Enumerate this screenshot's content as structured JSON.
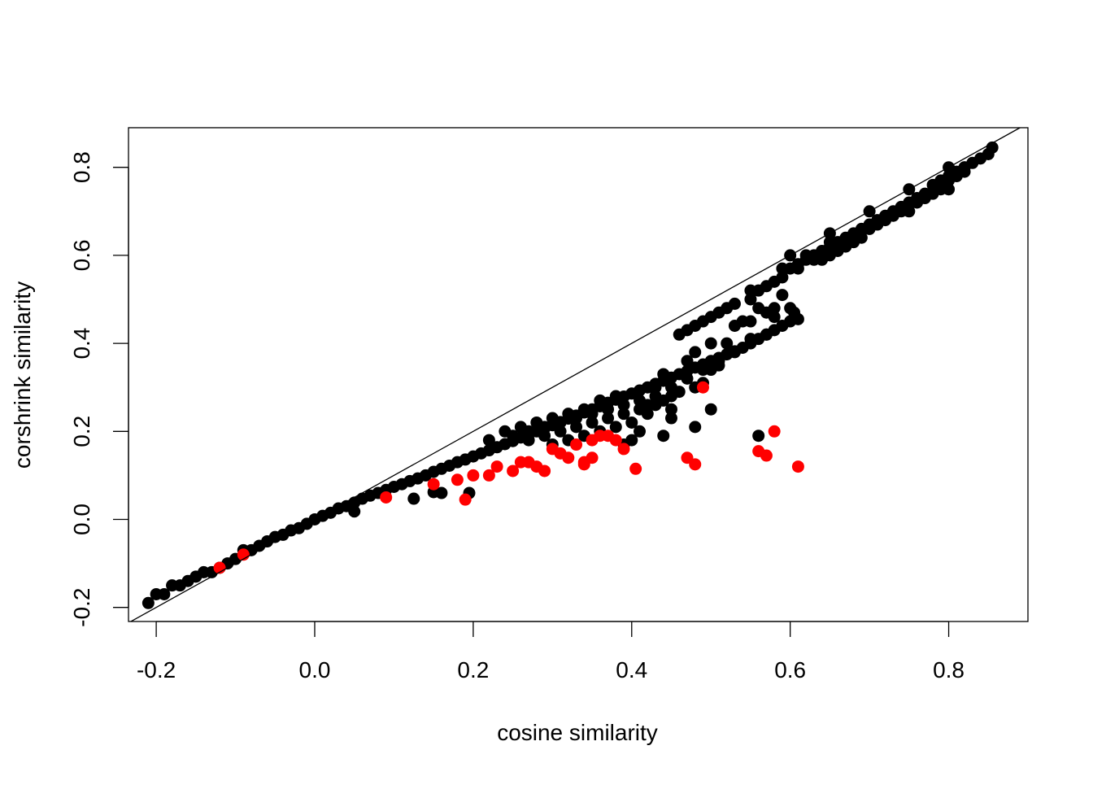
{
  "chart_data": {
    "type": "scatter",
    "title": "",
    "xlabel": "cosine similarity",
    "ylabel": "corshrink similarity",
    "xlim": [
      -0.235,
      0.9
    ],
    "ylim": [
      -0.232,
      0.89
    ],
    "x_ticks": [
      -0.2,
      0.0,
      0.2,
      0.4,
      0.6,
      0.8
    ],
    "x_tick_labels": [
      "-0.2",
      "0.0",
      "0.2",
      "0.4",
      "0.6",
      "0.8"
    ],
    "y_ticks": [
      -0.2,
      0.0,
      0.2,
      0.4,
      0.6,
      0.8
    ],
    "y_tick_labels": [
      "-0.2",
      "0.0",
      "0.2",
      "0.4",
      "0.6",
      "0.8"
    ],
    "grid": false,
    "legend": "none",
    "reference_line": {
      "intercept": 0,
      "slope": 1,
      "color": "#000000"
    },
    "series": [
      {
        "color": "#000000",
        "points": [
          [
            -0.21,
            -0.19
          ],
          [
            -0.2,
            -0.17
          ],
          [
            -0.19,
            -0.17
          ],
          [
            -0.18,
            -0.15
          ],
          [
            -0.17,
            -0.15
          ],
          [
            -0.16,
            -0.14
          ],
          [
            -0.15,
            -0.13
          ],
          [
            -0.14,
            -0.12
          ],
          [
            -0.13,
            -0.12
          ],
          [
            -0.12,
            -0.11
          ],
          [
            -0.11,
            -0.1
          ],
          [
            -0.1,
            -0.09
          ],
          [
            -0.09,
            -0.07
          ],
          [
            -0.08,
            -0.07
          ],
          [
            -0.07,
            -0.06
          ],
          [
            -0.06,
            -0.05
          ],
          [
            -0.05,
            -0.04
          ],
          [
            -0.04,
            -0.035
          ],
          [
            -0.03,
            -0.025
          ],
          [
            -0.02,
            -0.02
          ],
          [
            -0.01,
            -0.01
          ],
          [
            0.0,
            0.0
          ],
          [
            0.01,
            0.008
          ],
          [
            0.02,
            0.015
          ],
          [
            0.03,
            0.025
          ],
          [
            0.04,
            0.03
          ],
          [
            0.05,
            0.038
          ],
          [
            0.05,
            0.018
          ],
          [
            0.06,
            0.047
          ],
          [
            0.07,
            0.054
          ],
          [
            0.08,
            0.06
          ],
          [
            0.09,
            0.067
          ],
          [
            0.1,
            0.074
          ],
          [
            0.11,
            0.08
          ],
          [
            0.12,
            0.087
          ],
          [
            0.125,
            0.047
          ],
          [
            0.13,
            0.093
          ],
          [
            0.14,
            0.1
          ],
          [
            0.15,
            0.108
          ],
          [
            0.15,
            0.062
          ],
          [
            0.16,
            0.06
          ],
          [
            0.16,
            0.115
          ],
          [
            0.17,
            0.122
          ],
          [
            0.18,
            0.13
          ],
          [
            0.19,
            0.136
          ],
          [
            0.195,
            0.06
          ],
          [
            0.2,
            0.143
          ],
          [
            0.21,
            0.15
          ],
          [
            0.22,
            0.157
          ],
          [
            0.23,
            0.164
          ],
          [
            0.24,
            0.171
          ],
          [
            0.25,
            0.178
          ],
          [
            0.26,
            0.186
          ],
          [
            0.27,
            0.193
          ],
          [
            0.28,
            0.2
          ],
          [
            0.29,
            0.207
          ],
          [
            0.3,
            0.214
          ],
          [
            0.31,
            0.221
          ],
          [
            0.32,
            0.229
          ],
          [
            0.33,
            0.236
          ],
          [
            0.34,
            0.243
          ],
          [
            0.35,
            0.25
          ],
          [
            0.36,
            0.257
          ],
          [
            0.37,
            0.265
          ],
          [
            0.38,
            0.272
          ],
          [
            0.39,
            0.279
          ],
          [
            0.4,
            0.286
          ],
          [
            0.41,
            0.293
          ],
          [
            0.42,
            0.3
          ],
          [
            0.43,
            0.308
          ],
          [
            0.44,
            0.315
          ],
          [
            0.45,
            0.322
          ],
          [
            0.46,
            0.33
          ],
          [
            0.47,
            0.337
          ],
          [
            0.48,
            0.345
          ],
          [
            0.49,
            0.352
          ],
          [
            0.5,
            0.36
          ],
          [
            0.51,
            0.367
          ],
          [
            0.52,
            0.375
          ],
          [
            0.53,
            0.382
          ],
          [
            0.54,
            0.39
          ],
          [
            0.24,
            0.2
          ],
          [
            0.26,
            0.21
          ],
          [
            0.28,
            0.22
          ],
          [
            0.3,
            0.23
          ],
          [
            0.32,
            0.24
          ],
          [
            0.34,
            0.25
          ],
          [
            0.36,
            0.27
          ],
          [
            0.38,
            0.28
          ],
          [
            0.22,
            0.18
          ],
          [
            0.25,
            0.19
          ],
          [
            0.27,
            0.2
          ],
          [
            0.29,
            0.21
          ],
          [
            0.31,
            0.22
          ],
          [
            0.33,
            0.23
          ],
          [
            0.35,
            0.24
          ],
          [
            0.37,
            0.25
          ],
          [
            0.39,
            0.26
          ],
          [
            0.41,
            0.27
          ],
          [
            0.43,
            0.28
          ],
          [
            0.45,
            0.3
          ],
          [
            0.47,
            0.32
          ],
          [
            0.49,
            0.34
          ],
          [
            0.51,
            0.36
          ],
          [
            0.53,
            0.38
          ],
          [
            0.27,
            0.18
          ],
          [
            0.29,
            0.19
          ],
          [
            0.31,
            0.2
          ],
          [
            0.33,
            0.21
          ],
          [
            0.35,
            0.22
          ],
          [
            0.37,
            0.23
          ],
          [
            0.39,
            0.24
          ],
          [
            0.41,
            0.25
          ],
          [
            0.43,
            0.26
          ],
          [
            0.45,
            0.28
          ],
          [
            0.3,
            0.17
          ],
          [
            0.32,
            0.18
          ],
          [
            0.34,
            0.19
          ],
          [
            0.36,
            0.2
          ],
          [
            0.38,
            0.21
          ],
          [
            0.4,
            0.22
          ],
          [
            0.42,
            0.24
          ],
          [
            0.44,
            0.27
          ],
          [
            0.39,
            0.17
          ],
          [
            0.4,
            0.18
          ],
          [
            0.41,
            0.2
          ],
          [
            0.42,
            0.26
          ],
          [
            0.43,
            0.3
          ],
          [
            0.44,
            0.33
          ],
          [
            0.45,
            0.25
          ],
          [
            0.46,
            0.29
          ],
          [
            0.47,
            0.36
          ],
          [
            0.48,
            0.38
          ],
          [
            0.48,
            0.21
          ],
          [
            0.44,
            0.19
          ],
          [
            0.45,
            0.23
          ],
          [
            0.48,
            0.3
          ],
          [
            0.49,
            0.31
          ],
          [
            0.5,
            0.25
          ],
          [
            0.5,
            0.34
          ],
          [
            0.5,
            0.4
          ],
          [
            0.51,
            0.35
          ],
          [
            0.52,
            0.4
          ],
          [
            0.53,
            0.44
          ],
          [
            0.54,
            0.45
          ],
          [
            0.55,
            0.45
          ],
          [
            0.56,
            0.48
          ],
          [
            0.56,
            0.19
          ],
          [
            0.57,
            0.47
          ],
          [
            0.58,
            0.48
          ],
          [
            0.59,
            0.51
          ],
          [
            0.6,
            0.48
          ],
          [
            0.605,
            0.47
          ],
          [
            0.61,
            0.455
          ],
          [
            0.55,
            0.41
          ],
          [
            0.58,
            0.46
          ],
          [
            0.57,
            0.42
          ],
          [
            0.55,
            0.4
          ],
          [
            0.56,
            0.41
          ],
          [
            0.57,
            0.42
          ],
          [
            0.58,
            0.43
          ],
          [
            0.59,
            0.44
          ],
          [
            0.6,
            0.45
          ],
          [
            0.55,
            0.52
          ],
          [
            0.56,
            0.52
          ],
          [
            0.57,
            0.53
          ],
          [
            0.58,
            0.54
          ],
          [
            0.59,
            0.55
          ],
          [
            0.6,
            0.57
          ],
          [
            0.61,
            0.57
          ],
          [
            0.62,
            0.59
          ],
          [
            0.63,
            0.6
          ],
          [
            0.64,
            0.61
          ],
          [
            0.65,
            0.62
          ],
          [
            0.66,
            0.63
          ],
          [
            0.67,
            0.64
          ],
          [
            0.68,
            0.65
          ],
          [
            0.69,
            0.66
          ],
          [
            0.7,
            0.67
          ],
          [
            0.71,
            0.68
          ],
          [
            0.72,
            0.69
          ],
          [
            0.73,
            0.7
          ],
          [
            0.74,
            0.71
          ],
          [
            0.75,
            0.72
          ],
          [
            0.76,
            0.73
          ],
          [
            0.77,
            0.74
          ],
          [
            0.78,
            0.76
          ],
          [
            0.79,
            0.77
          ],
          [
            0.8,
            0.78
          ],
          [
            0.81,
            0.79
          ],
          [
            0.82,
            0.8
          ],
          [
            0.83,
            0.81
          ],
          [
            0.85,
            0.83
          ],
          [
            0.855,
            0.845
          ],
          [
            0.6,
            0.6
          ],
          [
            0.65,
            0.65
          ],
          [
            0.7,
            0.7
          ],
          [
            0.75,
            0.75
          ],
          [
            0.8,
            0.8
          ],
          [
            0.62,
            0.6
          ],
          [
            0.64,
            0.59
          ],
          [
            0.66,
            0.61
          ],
          [
            0.68,
            0.63
          ],
          [
            0.7,
            0.66
          ],
          [
            0.72,
            0.68
          ],
          [
            0.74,
            0.7
          ],
          [
            0.76,
            0.72
          ],
          [
            0.78,
            0.74
          ],
          [
            0.8,
            0.75
          ],
          [
            0.82,
            0.79
          ],
          [
            0.84,
            0.82
          ],
          [
            0.59,
            0.57
          ],
          [
            0.61,
            0.58
          ],
          [
            0.63,
            0.59
          ],
          [
            0.65,
            0.6
          ],
          [
            0.67,
            0.62
          ],
          [
            0.69,
            0.64
          ],
          [
            0.71,
            0.67
          ],
          [
            0.73,
            0.69
          ],
          [
            0.75,
            0.7
          ],
          [
            0.77,
            0.73
          ],
          [
            0.79,
            0.75
          ],
          [
            0.81,
            0.78
          ],
          [
            0.82,
            0.8
          ],
          [
            0.8,
            0.77
          ],
          [
            0.65,
            0.63
          ],
          [
            0.55,
            0.5
          ],
          [
            0.53,
            0.49
          ],
          [
            0.52,
            0.48
          ],
          [
            0.51,
            0.47
          ],
          [
            0.5,
            0.46
          ],
          [
            0.49,
            0.45
          ],
          [
            0.48,
            0.44
          ],
          [
            0.47,
            0.43
          ],
          [
            0.46,
            0.42
          ]
        ]
      },
      {
        "color": "#ff0000",
        "points": [
          [
            -0.12,
            -0.11
          ],
          [
            -0.09,
            -0.08
          ],
          [
            0.09,
            0.05
          ],
          [
            0.15,
            0.08
          ],
          [
            0.18,
            0.09
          ],
          [
            0.19,
            0.045
          ],
          [
            0.2,
            0.1
          ],
          [
            0.22,
            0.1
          ],
          [
            0.23,
            0.12
          ],
          [
            0.25,
            0.11
          ],
          [
            0.26,
            0.13
          ],
          [
            0.27,
            0.13
          ],
          [
            0.28,
            0.12
          ],
          [
            0.29,
            0.11
          ],
          [
            0.3,
            0.16
          ],
          [
            0.31,
            0.15
          ],
          [
            0.32,
            0.14
          ],
          [
            0.33,
            0.17
          ],
          [
            0.34,
            0.13
          ],
          [
            0.35,
            0.14
          ],
          [
            0.35,
            0.18
          ],
          [
            0.36,
            0.19
          ],
          [
            0.37,
            0.19
          ],
          [
            0.38,
            0.18
          ],
          [
            0.39,
            0.16
          ],
          [
            0.405,
            0.115
          ],
          [
            0.47,
            0.14
          ],
          [
            0.48,
            0.125
          ],
          [
            0.49,
            0.3
          ],
          [
            0.56,
            0.155
          ],
          [
            0.57,
            0.145
          ],
          [
            0.58,
            0.2
          ],
          [
            0.61,
            0.12
          ],
          [
            0.34,
            0.125
          ]
        ]
      }
    ]
  }
}
